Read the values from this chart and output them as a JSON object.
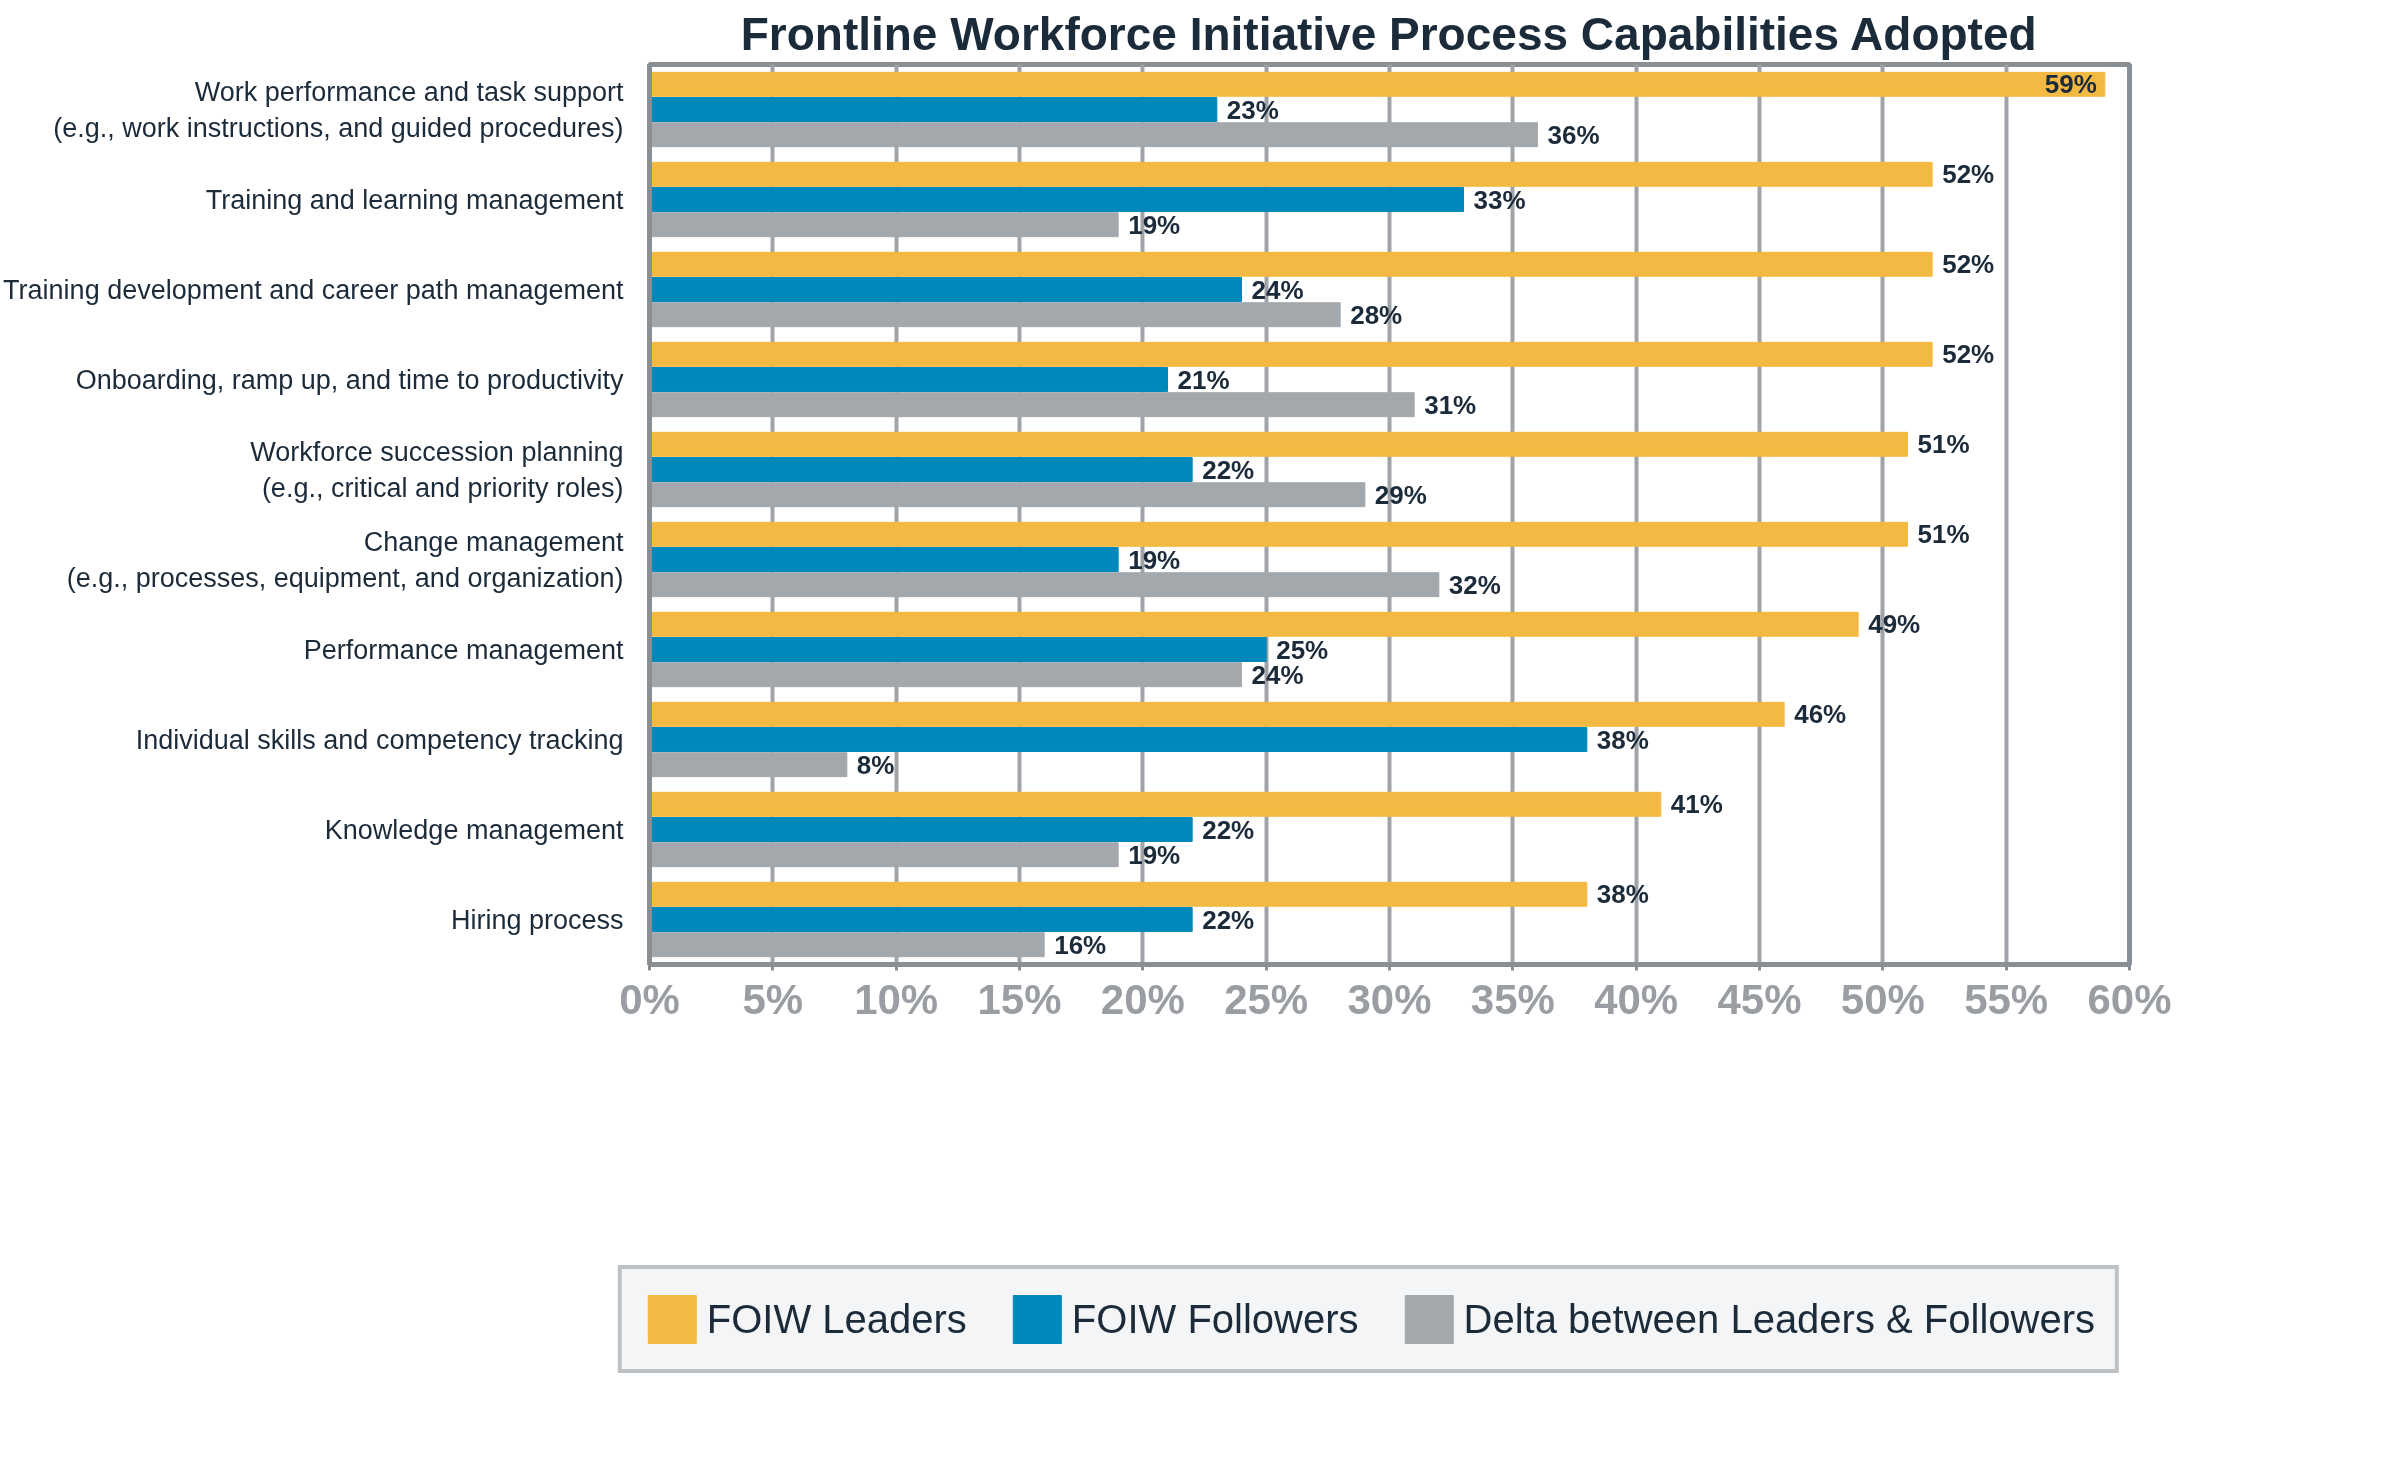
{
  "chart_data": {
    "type": "bar",
    "orientation": "horizontal",
    "title": "Frontline Workforce Initiative Process Capabilities Adopted",
    "categories": [
      "Work performance and task support\n(e.g., work instructions, and guided procedures)",
      "Training and learning management",
      "Training development and career path management",
      "Onboarding, ramp up, and time to productivity",
      "Workforce succession planning\n(e.g., critical and priority roles)",
      "Change management\n(e.g., processes, equipment, and organization)",
      "Performance management",
      "Individual skills and competency tracking",
      "Knowledge management",
      "Hiring process"
    ],
    "series": [
      {
        "name": "FOIW Leaders",
        "color": "#f4b942",
        "values": [
          59,
          52,
          52,
          52,
          51,
          51,
          49,
          46,
          41,
          38
        ],
        "value_labels": [
          "59%",
          "52%",
          "52%",
          "52%",
          "51%",
          "51%",
          "49%",
          "46%",
          "41%",
          "38%"
        ]
      },
      {
        "name": "FOIW Followers",
        "color": "#0088bb",
        "values": [
          23,
          33,
          24,
          21,
          22,
          19,
          25,
          38,
          22,
          22
        ],
        "value_labels": [
          "23%",
          "33%",
          "24%",
          "21%",
          "22%",
          "19%",
          "25%",
          "38%",
          "22%",
          "22%"
        ]
      },
      {
        "name": "Delta between Leaders & Followers",
        "color": "#a3a8ad",
        "values": [
          36,
          19,
          28,
          31,
          29,
          32,
          24,
          8,
          19,
          16
        ],
        "value_labels": [
          "36%",
          "19%",
          "28%",
          "31%",
          "29%",
          "32%",
          "24%",
          "8%",
          "19%",
          "16%"
        ]
      }
    ],
    "xlim": [
      0,
      60
    ],
    "xticks": [
      {
        "value": 0,
        "label": "0%"
      },
      {
        "value": 5,
        "label": "5%"
      },
      {
        "value": 10,
        "label": "10%"
      },
      {
        "value": 15,
        "label": "15%"
      },
      {
        "value": 20,
        "label": "20%"
      },
      {
        "value": 25,
        "label": "25%"
      },
      {
        "value": 30,
        "label": "30%"
      },
      {
        "value": 35,
        "label": "35%"
      },
      {
        "value": 40,
        "label": "40%"
      },
      {
        "value": 45,
        "label": "45%"
      },
      {
        "value": 50,
        "label": "50%"
      },
      {
        "value": 55,
        "label": "55%"
      },
      {
        "value": 60,
        "label": "60%"
      }
    ],
    "grid": "x",
    "legend": "bottom",
    "data_labels": true
  }
}
